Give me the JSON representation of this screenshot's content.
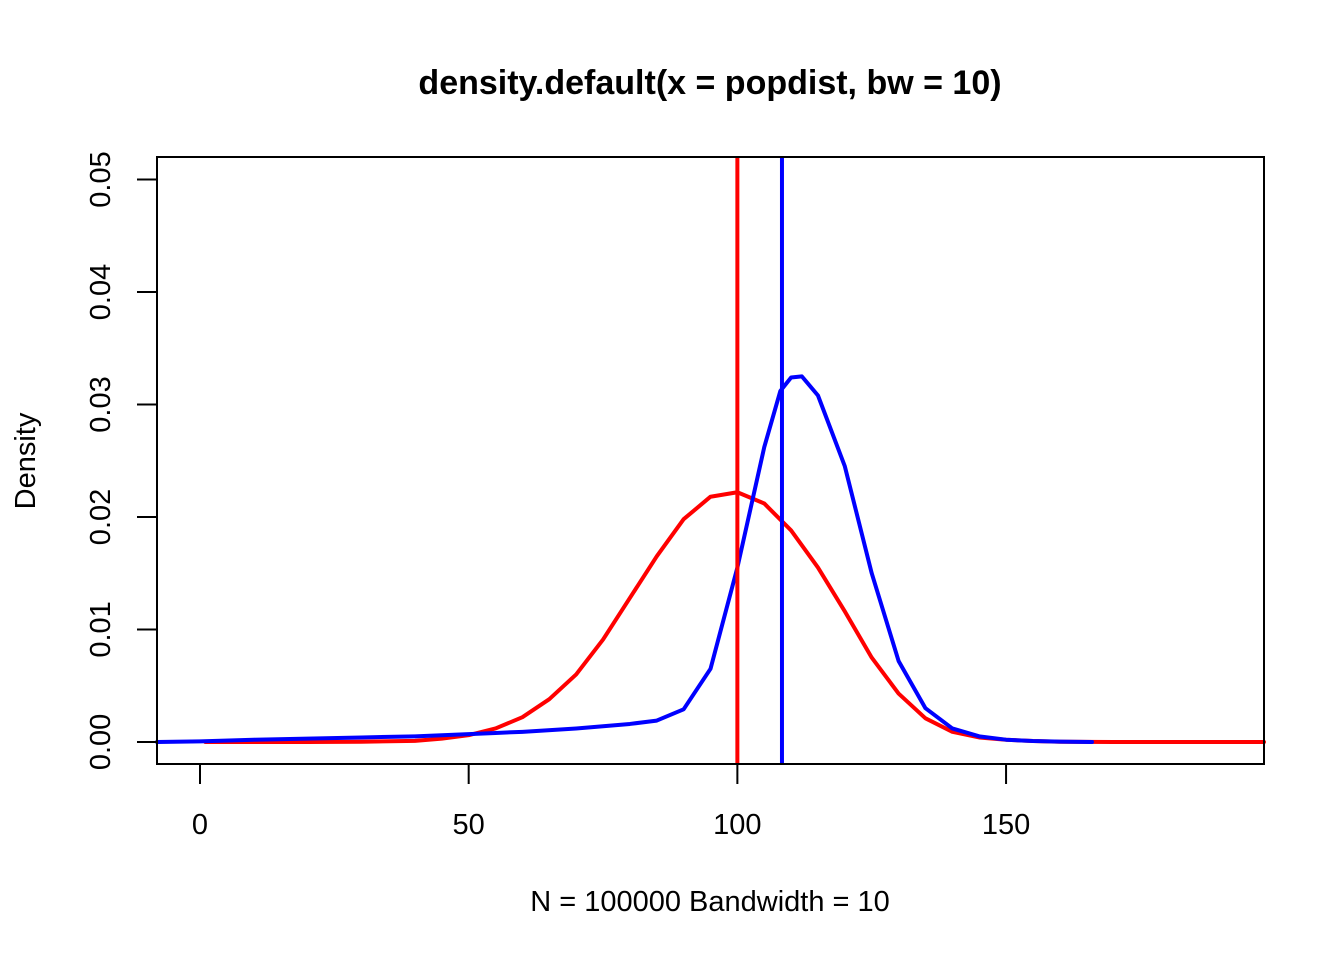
{
  "chart_data": {
    "type": "line",
    "title": "density.default(x = popdist, bw = 10)",
    "xlabel": "N = 100000   Bandwidth = 10",
    "ylabel": "Density",
    "xlim": [
      -8,
      198
    ],
    "ylim": [
      -0.00196,
      0.052
    ],
    "x_ticks": [
      0,
      50,
      100,
      150
    ],
    "x_tick_labels": [
      "0",
      "50",
      "100",
      "150"
    ],
    "y_ticks": [
      0.0,
      0.01,
      0.02,
      0.03,
      0.04,
      0.05
    ],
    "y_tick_labels": [
      "0.00",
      "0.01",
      "0.02",
      "0.03",
      "0.04",
      "0.05"
    ],
    "grid": false,
    "legend": "none",
    "series": [
      {
        "color": "#ff0000",
        "x": [
          1,
          10,
          20,
          30,
          40,
          45,
          50,
          55,
          60,
          65,
          70,
          75,
          80,
          85,
          90,
          95,
          100,
          105,
          110,
          115,
          120,
          125,
          130,
          135,
          140,
          145,
          150,
          155,
          160,
          170,
          180,
          190,
          198
        ],
        "y": [
          0,
          0,
          0,
          2e-05,
          0.0001,
          0.0003,
          0.0006,
          0.0012,
          0.0022,
          0.0038,
          0.006,
          0.0091,
          0.0128,
          0.0165,
          0.0198,
          0.0218,
          0.0222,
          0.0212,
          0.0188,
          0.0155,
          0.0116,
          0.0075,
          0.0043,
          0.0021,
          0.0009,
          0.0004,
          0.0002,
          8e-05,
          2e-05,
          0,
          0,
          0,
          0
        ]
      },
      {
        "color": "#0000ff",
        "x": [
          -8,
          0,
          10,
          20,
          30,
          40,
          50,
          55,
          60,
          70,
          80,
          85,
          90,
          95,
          100,
          105,
          108,
          110,
          112,
          115,
          120,
          125,
          130,
          135,
          140,
          145,
          150,
          155,
          160,
          166
        ],
        "y": [
          0,
          5e-05,
          0.0002,
          0.0003,
          0.0004,
          0.0005,
          0.0007,
          0.0008,
          0.0009,
          0.0012,
          0.0016,
          0.0019,
          0.0029,
          0.0065,
          0.0155,
          0.0262,
          0.0312,
          0.0324,
          0.0325,
          0.0308,
          0.0245,
          0.015,
          0.0072,
          0.003,
          0.0012,
          0.0005,
          0.0002,
          8e-05,
          3e-05,
          0
        ]
      }
    ],
    "vlines": [
      {
        "color": "#ff0000",
        "x": 100
      },
      {
        "color": "#0000ff",
        "x": 108.3
      }
    ]
  }
}
